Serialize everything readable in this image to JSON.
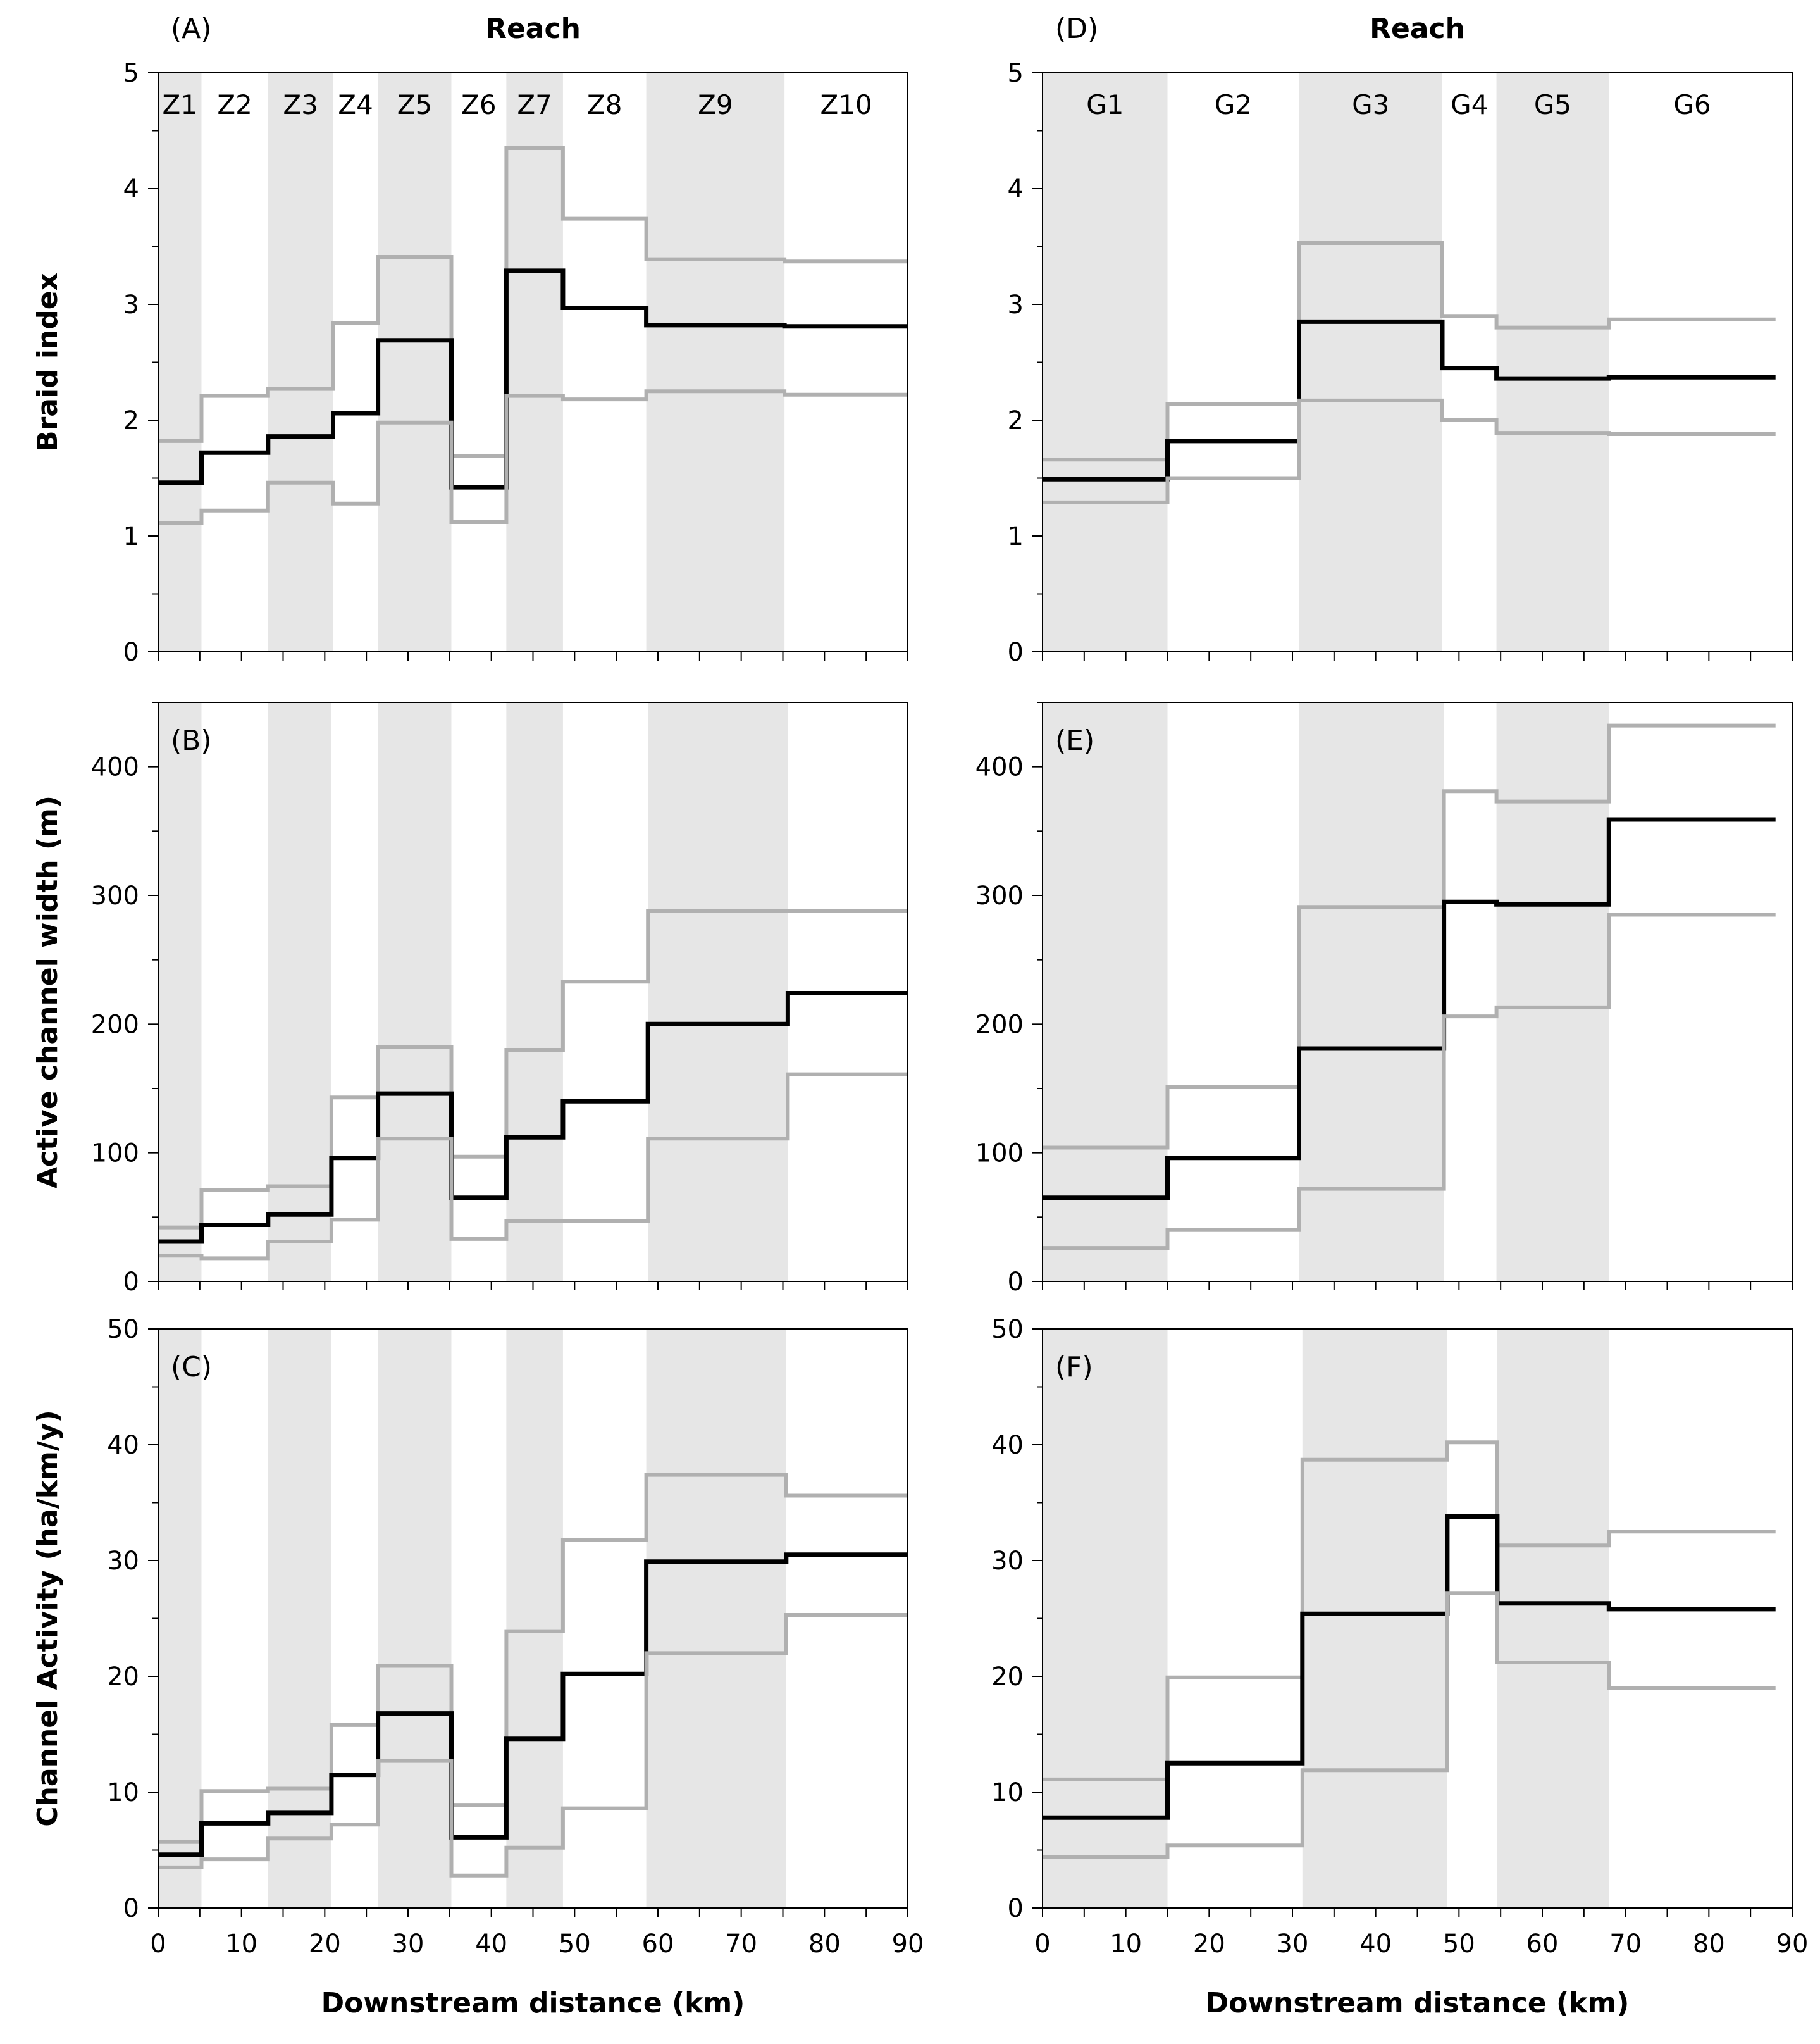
{
  "chart_data": [
    {
      "id": "A",
      "type": "line",
      "panel_label": "(A)",
      "header": "Reach",
      "xlim": [
        0,
        90
      ],
      "ylim": [
        0,
        5
      ],
      "yticks": [
        0,
        1,
        2,
        3,
        4,
        5
      ],
      "ylabel": "Braid index",
      "xlabel": "",
      "reaches": [
        {
          "name": "Z1",
          "start": 0,
          "end": 5.2,
          "shaded": true
        },
        {
          "name": "Z2",
          "start": 5.2,
          "end": 13.2,
          "shaded": false
        },
        {
          "name": "Z3",
          "start": 13.2,
          "end": 21,
          "shaded": true
        },
        {
          "name": "Z4",
          "start": 21,
          "end": 26.4,
          "shaded": false
        },
        {
          "name": "Z5",
          "start": 26.4,
          "end": 35.2,
          "shaded": true
        },
        {
          "name": "Z6",
          "start": 35.2,
          "end": 41.8,
          "shaded": false
        },
        {
          "name": "Z7",
          "start": 41.8,
          "end": 48.6,
          "shaded": true
        },
        {
          "name": "Z8",
          "start": 48.6,
          "end": 58.6,
          "shaded": false
        },
        {
          "name": "Z9",
          "start": 58.6,
          "end": 75.2,
          "shaded": true
        },
        {
          "name": "Z10",
          "start": 75.2,
          "end": 90,
          "shaded": false
        }
      ],
      "series": [
        {
          "name": "upper",
          "color": "#b0b0b0",
          "values": [
            1.82,
            2.21,
            2.27,
            2.84,
            3.41,
            1.69,
            4.35,
            3.74,
            3.39,
            3.37
          ]
        },
        {
          "name": "mean",
          "color": "#000000",
          "values": [
            1.46,
            1.72,
            1.86,
            2.06,
            2.69,
            1.42,
            3.29,
            2.97,
            2.82,
            2.81
          ]
        },
        {
          "name": "lower",
          "color": "#b0b0b0",
          "values": [
            1.11,
            1.22,
            1.46,
            1.28,
            1.98,
            1.12,
            2.21,
            2.18,
            2.25,
            2.22
          ]
        }
      ]
    },
    {
      "id": "B",
      "type": "line",
      "panel_label": "(B)",
      "xlim": [
        0,
        90
      ],
      "ylim": [
        0,
        450
      ],
      "yticks": [
        0,
        100,
        200,
        300,
        400
      ],
      "ylabel": "Active channel width (m)",
      "xlabel": "",
      "reaches": [
        {
          "start": 0,
          "end": 5.2,
          "shaded": true
        },
        {
          "start": 5.2,
          "end": 13.2,
          "shaded": false
        },
        {
          "start": 13.2,
          "end": 20.8,
          "shaded": true
        },
        {
          "start": 20.8,
          "end": 26.4,
          "shaded": false
        },
        {
          "start": 26.4,
          "end": 35.2,
          "shaded": true
        },
        {
          "start": 35.2,
          "end": 41.8,
          "shaded": false
        },
        {
          "start": 41.8,
          "end": 48.6,
          "shaded": true
        },
        {
          "start": 48.6,
          "end": 58.8,
          "shaded": false
        },
        {
          "start": 58.8,
          "end": 75.6,
          "shaded": true
        },
        {
          "start": 75.6,
          "end": 90,
          "shaded": false
        }
      ],
      "series": [
        {
          "name": "upper",
          "color": "#b0b0b0",
          "values": [
            42,
            71,
            74,
            143,
            182,
            97,
            180,
            233,
            288,
            288
          ]
        },
        {
          "name": "mean",
          "color": "#000000",
          "values": [
            31,
            44,
            52,
            96,
            146,
            65,
            112,
            140,
            200,
            224
          ]
        },
        {
          "name": "lower",
          "color": "#b0b0b0",
          "values": [
            20,
            18,
            31,
            48,
            111,
            33,
            47,
            47,
            111,
            161
          ]
        }
      ]
    },
    {
      "id": "C",
      "type": "line",
      "panel_label": "(C)",
      "xlim": [
        0,
        90
      ],
      "ylim": [
        0,
        50
      ],
      "yticks": [
        0,
        10,
        20,
        30,
        40,
        50
      ],
      "xticks": [
        0,
        10,
        20,
        30,
        40,
        50,
        60,
        70,
        80,
        90
      ],
      "ylabel": "Channel Activity (ha/km/y)",
      "xlabel": "Downstream distance (km)",
      "reaches": [
        {
          "start": 0,
          "end": 5.2,
          "shaded": true
        },
        {
          "start": 5.2,
          "end": 13.2,
          "shaded": false
        },
        {
          "start": 13.2,
          "end": 20.8,
          "shaded": true
        },
        {
          "start": 20.8,
          "end": 26.4,
          "shaded": false
        },
        {
          "start": 26.4,
          "end": 35.2,
          "shaded": true
        },
        {
          "start": 35.2,
          "end": 41.8,
          "shaded": false
        },
        {
          "start": 41.8,
          "end": 48.6,
          "shaded": true
        },
        {
          "start": 48.6,
          "end": 58.6,
          "shaded": false
        },
        {
          "start": 58.6,
          "end": 75.4,
          "shaded": true
        },
        {
          "start": 75.4,
          "end": 90,
          "shaded": false
        }
      ],
      "series": [
        {
          "name": "upper",
          "color": "#b0b0b0",
          "values": [
            5.7,
            10.1,
            10.3,
            15.8,
            20.9,
            8.9,
            23.9,
            31.8,
            37.4,
            35.6
          ]
        },
        {
          "name": "mean",
          "color": "#000000",
          "values": [
            4.6,
            7.3,
            8.2,
            11.5,
            16.8,
            6.1,
            14.6,
            20.2,
            29.9,
            30.5
          ]
        },
        {
          "name": "lower",
          "color": "#b0b0b0",
          "values": [
            3.5,
            4.2,
            6.0,
            7.2,
            12.7,
            2.8,
            5.2,
            8.6,
            22.0,
            25.3
          ]
        }
      ]
    },
    {
      "id": "D",
      "type": "line",
      "panel_label": "(D)",
      "header": "Reach",
      "xlim": [
        0,
        90
      ],
      "ylim": [
        0,
        5
      ],
      "yticks": [
        0,
        1,
        2,
        3,
        4,
        5
      ],
      "ylabel": "",
      "xlabel": "",
      "reaches": [
        {
          "name": "G1",
          "start": 0,
          "end": 15,
          "shaded": true
        },
        {
          "name": "G2",
          "start": 15,
          "end": 30.8,
          "shaded": false
        },
        {
          "name": "G3",
          "start": 30.8,
          "end": 48,
          "shaded": true
        },
        {
          "name": "G4",
          "start": 48,
          "end": 54.5,
          "shaded": false
        },
        {
          "name": "G5",
          "start": 54.5,
          "end": 68,
          "shaded": true
        },
        {
          "name": "G6",
          "start": 68,
          "end": 88,
          "shaded": false
        }
      ],
      "series": [
        {
          "name": "upper",
          "color": "#b0b0b0",
          "values": [
            1.66,
            2.14,
            3.53,
            2.9,
            2.8,
            2.87
          ]
        },
        {
          "name": "mean",
          "color": "#000000",
          "values": [
            1.49,
            1.82,
            2.85,
            2.45,
            2.36,
            2.37
          ]
        },
        {
          "name": "lower",
          "color": "#b0b0b0",
          "values": [
            1.29,
            1.5,
            2.17,
            2.0,
            1.89,
            1.88
          ]
        }
      ]
    },
    {
      "id": "E",
      "type": "line",
      "panel_label": "(E)",
      "xlim": [
        0,
        90
      ],
      "ylim": [
        0,
        450
      ],
      "yticks": [
        0,
        100,
        200,
        300,
        400
      ],
      "ylabel": "",
      "xlabel": "",
      "reaches": [
        {
          "start": 0,
          "end": 15,
          "shaded": true
        },
        {
          "start": 15,
          "end": 30.8,
          "shaded": false
        },
        {
          "start": 30.8,
          "end": 48.2,
          "shaded": true
        },
        {
          "start": 48.2,
          "end": 54.5,
          "shaded": false
        },
        {
          "start": 54.5,
          "end": 68,
          "shaded": true
        },
        {
          "start": 68,
          "end": 88,
          "shaded": false
        }
      ],
      "series": [
        {
          "name": "upper",
          "color": "#b0b0b0",
          "values": [
            104,
            151,
            291,
            381,
            373,
            432
          ]
        },
        {
          "name": "mean",
          "color": "#000000",
          "values": [
            65,
            96,
            181,
            295,
            293,
            359
          ]
        },
        {
          "name": "lower",
          "color": "#b0b0b0",
          "values": [
            26,
            40,
            72,
            206,
            213,
            285
          ]
        }
      ]
    },
    {
      "id": "F",
      "type": "line",
      "panel_label": "(F)",
      "xlim": [
        0,
        90
      ],
      "ylim": [
        0,
        50
      ],
      "yticks": [
        0,
        10,
        20,
        30,
        40,
        50
      ],
      "xticks": [
        0,
        10,
        20,
        30,
        40,
        50,
        60,
        70,
        80,
        90
      ],
      "ylabel": "",
      "xlabel": "Downstream distance (km)",
      "reaches": [
        {
          "start": 0,
          "end": 15,
          "shaded": true
        },
        {
          "start": 15,
          "end": 31.2,
          "shaded": false
        },
        {
          "start": 31.2,
          "end": 48.6,
          "shaded": true
        },
        {
          "start": 48.6,
          "end": 54.6,
          "shaded": false
        },
        {
          "start": 54.6,
          "end": 68,
          "shaded": true
        },
        {
          "start": 68,
          "end": 88,
          "shaded": false
        }
      ],
      "series": [
        {
          "name": "upper",
          "color": "#b0b0b0",
          "values": [
            11.1,
            19.9,
            38.7,
            40.2,
            31.3,
            32.5
          ]
        },
        {
          "name": "mean",
          "color": "#000000",
          "values": [
            7.8,
            12.5,
            25.4,
            33.8,
            26.3,
            25.8
          ]
        },
        {
          "name": "lower",
          "color": "#b0b0b0",
          "values": [
            4.4,
            5.4,
            11.9,
            27.2,
            21.2,
            19.0
          ]
        }
      ]
    }
  ]
}
